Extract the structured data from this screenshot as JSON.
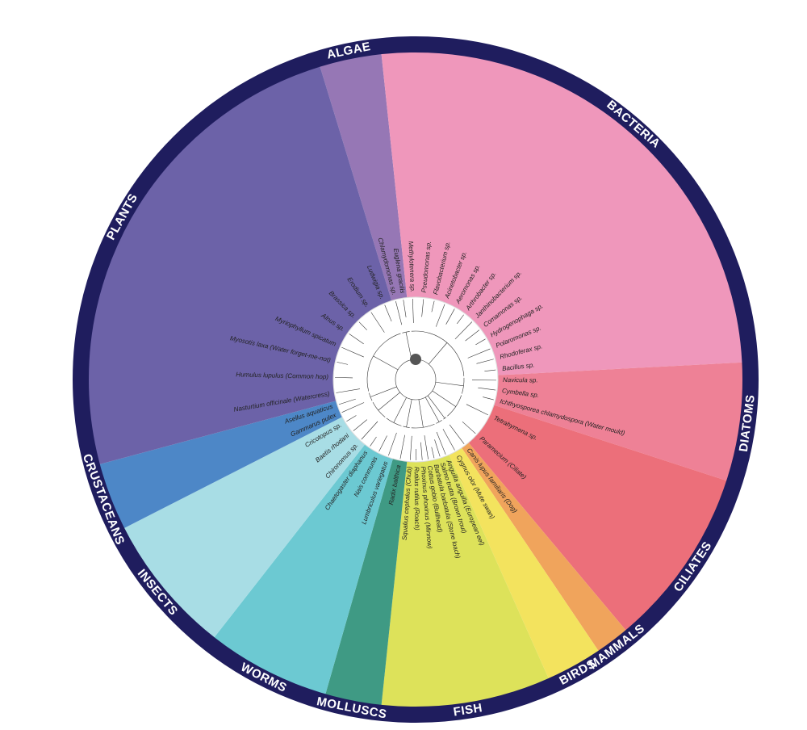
{
  "groups": [
    {
      "label": "ALGAE",
      "species": [
        "Chlamydomonas sp.",
        "Euglena gracilis"
      ]
    },
    {
      "label": "BACTERIA",
      "species": [
        "Methylotenera sp.",
        "Pseudomonas sp.",
        "Flavobacterium sp.",
        "Acinetobacter sp.",
        "Aeromonas sp.",
        "Arthrobacter sp.",
        "Janthinobacterium sp.",
        "Comamonas sp.",
        "Hydrogenophaga sp.",
        "Polaromonas sp.",
        "Rhodoferax sp.",
        "Bacillus sp."
      ]
    },
    {
      "label": "DIATOMS",
      "species": [
        "Navicula sp.",
        "Cymbella sp.",
        "Ichthyosporea chlamydospora (Water mould)"
      ]
    },
    {
      "label": "CILIATES",
      "species": [
        "Tetrahymena sp.",
        "Paramecium (Ciliate)"
      ]
    },
    {
      "label": "MAMMALS",
      "species": [
        "Canis lupus familiaris (Dog)"
      ]
    },
    {
      "label": "BIRDS",
      "species": [
        "Cygnus olor (Mute swan)"
      ]
    },
    {
      "label": "FISH",
      "species": [
        "Anguilla anguilla (European eel)",
        "Salmo trutta (Brown trout)",
        "Barbatula barbatula (Stone loach)",
        "Cottus gobio (Bullhead)",
        "Phoxinus phoxinus (Minnow)",
        "Rutilus rutilus (Roach)",
        "Squalius cephalus (Chub)"
      ]
    },
    {
      "label": "MOLLUSCS",
      "species": [
        "Radix balthica"
      ]
    },
    {
      "label": "WORMS",
      "species": [
        "Lumbriculus variegatus",
        "Nais communis",
        "Chaetogaster diaphanus"
      ]
    },
    {
      "label": "INSECTS",
      "species": [
        "Chironomus sp.",
        "Baetis rhodani",
        "Cricotopus sp."
      ]
    },
    {
      "label": "CRUSTACEANS",
      "species": [
        "Gammarus pulex",
        "Asellus aquaticus"
      ]
    },
    {
      "label": "PLANTS",
      "species": [
        "Nasturtium officinale (Watercress)",
        "Humulus lupulus (Common hop)",
        "Myosotis laxa (Water forget-me-not)",
        "Myriophyllum spicatum",
        "Alnus sp.",
        "Brassica sp.",
        "Erodium sp.",
        "Ludwigia sp."
      ]
    }
  ]
}
